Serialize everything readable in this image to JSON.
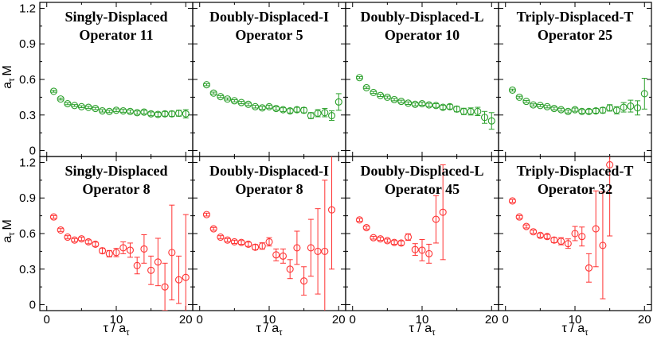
{
  "chart_data": {
    "type": "scatter",
    "layout": "2x4 grid of panels",
    "xlabel": "τ / a",
    "xlabel_sub": "τ",
    "ylabel": "a",
    "ylabel_sub": "τ",
    "ylabel_suffix": "M",
    "xlim": [
      -1,
      21
    ],
    "xticks": [
      "0",
      "10",
      "20"
    ],
    "ylim": [
      -0.05,
      1.25
    ],
    "yticks": [
      "0",
      "0.3",
      "0.6",
      "0.9",
      "1.2"
    ],
    "panels": [
      {
        "title_line1": "Singly-Displaced",
        "title_line2": "Operator 11",
        "color": "#2ca02c",
        "points": [
          {
            "x": 1,
            "y": 0.5,
            "err": 0.008
          },
          {
            "x": 2,
            "y": 0.435,
            "err": 0.008
          },
          {
            "x": 3,
            "y": 0.395,
            "err": 0.008
          },
          {
            "x": 4,
            "y": 0.38,
            "err": 0.008
          },
          {
            "x": 5,
            "y": 0.37,
            "err": 0.008
          },
          {
            "x": 6,
            "y": 0.365,
            "err": 0.009
          },
          {
            "x": 7,
            "y": 0.355,
            "err": 0.009
          },
          {
            "x": 8,
            "y": 0.335,
            "err": 0.01
          },
          {
            "x": 9,
            "y": 0.33,
            "err": 0.01
          },
          {
            "x": 10,
            "y": 0.34,
            "err": 0.012
          },
          {
            "x": 11,
            "y": 0.335,
            "err": 0.012
          },
          {
            "x": 12,
            "y": 0.33,
            "err": 0.013
          },
          {
            "x": 13,
            "y": 0.32,
            "err": 0.014
          },
          {
            "x": 14,
            "y": 0.325,
            "err": 0.015
          },
          {
            "x": 15,
            "y": 0.31,
            "err": 0.016
          },
          {
            "x": 16,
            "y": 0.305,
            "err": 0.018
          },
          {
            "x": 17,
            "y": 0.31,
            "err": 0.02
          },
          {
            "x": 18,
            "y": 0.31,
            "err": 0.022
          },
          {
            "x": 19,
            "y": 0.315,
            "err": 0.025
          },
          {
            "x": 20,
            "y": 0.31,
            "err": 0.035
          }
        ]
      },
      {
        "title_line1": "Doubly-Displaced-I",
        "title_line2": "Operator 5",
        "color": "#2ca02c",
        "points": [
          {
            "x": 1,
            "y": 0.555,
            "err": 0.008
          },
          {
            "x": 2,
            "y": 0.485,
            "err": 0.008
          },
          {
            "x": 3,
            "y": 0.455,
            "err": 0.008
          },
          {
            "x": 4,
            "y": 0.435,
            "err": 0.009
          },
          {
            "x": 5,
            "y": 0.42,
            "err": 0.009
          },
          {
            "x": 6,
            "y": 0.405,
            "err": 0.01
          },
          {
            "x": 7,
            "y": 0.39,
            "err": 0.01
          },
          {
            "x": 8,
            "y": 0.37,
            "err": 0.011
          },
          {
            "x": 9,
            "y": 0.36,
            "err": 0.012
          },
          {
            "x": 10,
            "y": 0.37,
            "err": 0.013
          },
          {
            "x": 11,
            "y": 0.355,
            "err": 0.014
          },
          {
            "x": 12,
            "y": 0.345,
            "err": 0.016
          },
          {
            "x": 13,
            "y": 0.335,
            "err": 0.018
          },
          {
            "x": 14,
            "y": 0.345,
            "err": 0.02
          },
          {
            "x": 15,
            "y": 0.34,
            "err": 0.022
          },
          {
            "x": 16,
            "y": 0.295,
            "err": 0.025
          },
          {
            "x": 17,
            "y": 0.315,
            "err": 0.03
          },
          {
            "x": 18,
            "y": 0.32,
            "err": 0.035
          },
          {
            "x": 19,
            "y": 0.295,
            "err": 0.04
          },
          {
            "x": 20,
            "y": 0.41,
            "err": 0.07
          }
        ]
      },
      {
        "title_line1": "Doubly-Displaced-L",
        "title_line2": "Operator 10",
        "color": "#2ca02c",
        "points": [
          {
            "x": 1,
            "y": 0.615,
            "err": 0.008
          },
          {
            "x": 2,
            "y": 0.53,
            "err": 0.008
          },
          {
            "x": 3,
            "y": 0.49,
            "err": 0.008
          },
          {
            "x": 4,
            "y": 0.465,
            "err": 0.009
          },
          {
            "x": 5,
            "y": 0.45,
            "err": 0.009
          },
          {
            "x": 6,
            "y": 0.43,
            "err": 0.01
          },
          {
            "x": 7,
            "y": 0.415,
            "err": 0.01
          },
          {
            "x": 8,
            "y": 0.4,
            "err": 0.011
          },
          {
            "x": 9,
            "y": 0.39,
            "err": 0.012
          },
          {
            "x": 10,
            "y": 0.395,
            "err": 0.013
          },
          {
            "x": 11,
            "y": 0.385,
            "err": 0.014
          },
          {
            "x": 12,
            "y": 0.38,
            "err": 0.016
          },
          {
            "x": 13,
            "y": 0.365,
            "err": 0.018
          },
          {
            "x": 14,
            "y": 0.37,
            "err": 0.02
          },
          {
            "x": 15,
            "y": 0.35,
            "err": 0.023
          },
          {
            "x": 16,
            "y": 0.33,
            "err": 0.027
          },
          {
            "x": 17,
            "y": 0.33,
            "err": 0.03
          },
          {
            "x": 18,
            "y": 0.33,
            "err": 0.035
          },
          {
            "x": 19,
            "y": 0.28,
            "err": 0.05
          },
          {
            "x": 20,
            "y": 0.25,
            "err": 0.07
          }
        ]
      },
      {
        "title_line1": "Triply-Displaced-T",
        "title_line2": "Operator 25",
        "color": "#2ca02c",
        "points": [
          {
            "x": 1,
            "y": 0.51,
            "err": 0.008
          },
          {
            "x": 2,
            "y": 0.45,
            "err": 0.008
          },
          {
            "x": 3,
            "y": 0.415,
            "err": 0.008
          },
          {
            "x": 4,
            "y": 0.385,
            "err": 0.009
          },
          {
            "x": 5,
            "y": 0.38,
            "err": 0.009
          },
          {
            "x": 6,
            "y": 0.37,
            "err": 0.01
          },
          {
            "x": 7,
            "y": 0.355,
            "err": 0.011
          },
          {
            "x": 8,
            "y": 0.345,
            "err": 0.012
          },
          {
            "x": 9,
            "y": 0.33,
            "err": 0.013
          },
          {
            "x": 10,
            "y": 0.345,
            "err": 0.014
          },
          {
            "x": 11,
            "y": 0.33,
            "err": 0.016
          },
          {
            "x": 12,
            "y": 0.33,
            "err": 0.018
          },
          {
            "x": 13,
            "y": 0.335,
            "err": 0.02
          },
          {
            "x": 14,
            "y": 0.34,
            "err": 0.023
          },
          {
            "x": 15,
            "y": 0.36,
            "err": 0.027
          },
          {
            "x": 16,
            "y": 0.34,
            "err": 0.03
          },
          {
            "x": 17,
            "y": 0.365,
            "err": 0.04
          },
          {
            "x": 18,
            "y": 0.375,
            "err": 0.05
          },
          {
            "x": 19,
            "y": 0.36,
            "err": 0.06
          },
          {
            "x": 20,
            "y": 0.48,
            "err": 0.13
          }
        ]
      },
      {
        "title_line1": "Singly-Displaced",
        "title_line2": "Operator 8",
        "color": "#ff3333",
        "points": [
          {
            "x": 1,
            "y": 0.74,
            "err": 0.012
          },
          {
            "x": 2,
            "y": 0.63,
            "err": 0.012
          },
          {
            "x": 3,
            "y": 0.57,
            "err": 0.012
          },
          {
            "x": 4,
            "y": 0.545,
            "err": 0.013
          },
          {
            "x": 5,
            "y": 0.555,
            "err": 0.014
          },
          {
            "x": 6,
            "y": 0.53,
            "err": 0.016
          },
          {
            "x": 7,
            "y": 0.51,
            "err": 0.018
          },
          {
            "x": 8,
            "y": 0.455,
            "err": 0.022
          },
          {
            "x": 9,
            "y": 0.43,
            "err": 0.027
          },
          {
            "x": 10,
            "y": 0.44,
            "err": 0.035
          },
          {
            "x": 11,
            "y": 0.48,
            "err": 0.05
          },
          {
            "x": 12,
            "y": 0.46,
            "err": 0.06
          },
          {
            "x": 13,
            "y": 0.33,
            "err": 0.07
          },
          {
            "x": 14,
            "y": 0.47,
            "err": 0.12
          },
          {
            "x": 15,
            "y": 0.29,
            "err": 0.12
          },
          {
            "x": 16,
            "y": 0.36,
            "err": 0.2
          },
          {
            "x": 17,
            "y": 0.15,
            "err": 0.2
          },
          {
            "x": 18,
            "y": 0.44,
            "err": 0.4
          },
          {
            "x": 19,
            "y": 0.21,
            "err": 0.2
          },
          {
            "x": 20,
            "y": 0.23,
            "err": 0.53
          }
        ]
      },
      {
        "title_line1": "Doubly-Displaced-I",
        "title_line2": "Operator 8",
        "color": "#ff3333",
        "points": [
          {
            "x": 1,
            "y": 0.76,
            "err": 0.012
          },
          {
            "x": 2,
            "y": 0.64,
            "err": 0.012
          },
          {
            "x": 3,
            "y": 0.57,
            "err": 0.012
          },
          {
            "x": 4,
            "y": 0.545,
            "err": 0.013
          },
          {
            "x": 5,
            "y": 0.53,
            "err": 0.014
          },
          {
            "x": 6,
            "y": 0.525,
            "err": 0.016
          },
          {
            "x": 7,
            "y": 0.51,
            "err": 0.018
          },
          {
            "x": 8,
            "y": 0.485,
            "err": 0.022
          },
          {
            "x": 9,
            "y": 0.495,
            "err": 0.027
          },
          {
            "x": 10,
            "y": 0.53,
            "err": 0.035
          },
          {
            "x": 11,
            "y": 0.42,
            "err": 0.05
          },
          {
            "x": 12,
            "y": 0.41,
            "err": 0.06
          },
          {
            "x": 13,
            "y": 0.3,
            "err": 0.08
          },
          {
            "x": 14,
            "y": 0.48,
            "err": 0.14
          },
          {
            "x": 15,
            "y": 0.2,
            "err": 0.12
          },
          {
            "x": 16,
            "y": 0.48,
            "err": 0.24
          },
          {
            "x": 17,
            "y": 0.45,
            "err": 0.36
          },
          {
            "x": 18,
            "y": 0.45,
            "err": 0.6
          },
          {
            "x": 19,
            "y": 0.8,
            "err": 0.5
          }
        ]
      },
      {
        "title_line1": "Doubly-Displaced-L",
        "title_line2": "Operator 45",
        "color": "#ff3333",
        "points": [
          {
            "x": 1,
            "y": 0.715,
            "err": 0.012
          },
          {
            "x": 2,
            "y": 0.65,
            "err": 0.012
          },
          {
            "x": 3,
            "y": 0.565,
            "err": 0.012
          },
          {
            "x": 4,
            "y": 0.555,
            "err": 0.013
          },
          {
            "x": 5,
            "y": 0.54,
            "err": 0.014
          },
          {
            "x": 6,
            "y": 0.525,
            "err": 0.016
          },
          {
            "x": 7,
            "y": 0.52,
            "err": 0.018
          },
          {
            "x": 8,
            "y": 0.57,
            "err": 0.028
          },
          {
            "x": 9,
            "y": 0.465,
            "err": 0.05
          },
          {
            "x": 10,
            "y": 0.46,
            "err": 0.09
          },
          {
            "x": 11,
            "y": 0.43,
            "err": 0.08
          },
          {
            "x": 12,
            "y": 0.72,
            "err": 0.2
          },
          {
            "x": 13,
            "y": 0.78,
            "err": 0.4
          }
        ]
      },
      {
        "title_line1": "Triply-Displaced-T",
        "title_line2": "Operator 32",
        "color": "#ff3333",
        "points": [
          {
            "x": 1,
            "y": 0.875,
            "err": 0.012
          },
          {
            "x": 2,
            "y": 0.74,
            "err": 0.012
          },
          {
            "x": 3,
            "y": 0.66,
            "err": 0.013
          },
          {
            "x": 4,
            "y": 0.615,
            "err": 0.014
          },
          {
            "x": 5,
            "y": 0.585,
            "err": 0.016
          },
          {
            "x": 6,
            "y": 0.575,
            "err": 0.018
          },
          {
            "x": 7,
            "y": 0.545,
            "err": 0.022
          },
          {
            "x": 8,
            "y": 0.535,
            "err": 0.03
          },
          {
            "x": 9,
            "y": 0.515,
            "err": 0.04
          },
          {
            "x": 10,
            "y": 0.6,
            "err": 0.06
          },
          {
            "x": 11,
            "y": 0.575,
            "err": 0.08
          },
          {
            "x": 12,
            "y": 0.31,
            "err": 0.12
          },
          {
            "x": 13,
            "y": 0.64,
            "err": 0.32
          },
          {
            "x": 14,
            "y": 0.5,
            "err": 0.45
          },
          {
            "x": 15,
            "y": 1.18,
            "err": 0.6
          }
        ]
      }
    ]
  }
}
